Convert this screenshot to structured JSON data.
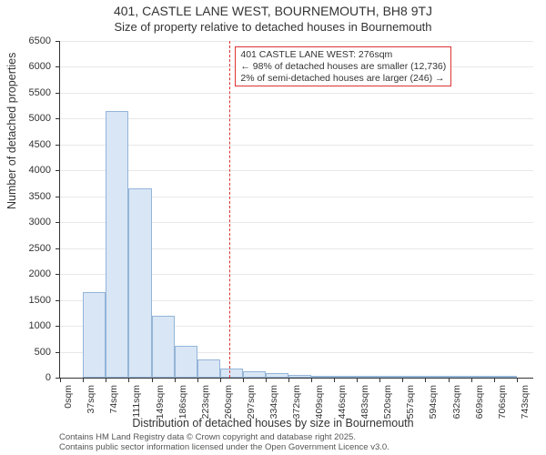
{
  "chart": {
    "type": "histogram",
    "title_main": "401, CASTLE LANE WEST, BOURNEMOUTH, BH8 9TJ",
    "title_sub": "Size of property relative to detached houses in Bournemouth",
    "y_label": "Number of detached properties",
    "x_label": "Distribution of detached houses by size in Bournemouth",
    "title_fontsize": 14,
    "subtitle_fontsize": 13,
    "axis_label_fontsize": 12.5,
    "tick_fontsize": 11,
    "background_color": "#ffffff",
    "bar_fill": "#d9e6f5",
    "bar_stroke": "#94b5d8",
    "grid_color": "#e8e8e8",
    "ref_line_color": "#dd3333",
    "bar_stroke_width": 1,
    "y_ticks": [
      0,
      500,
      1000,
      1500,
      2000,
      2500,
      3000,
      3500,
      4000,
      4500,
      5000,
      5500,
      6000,
      6500
    ],
    "y_min": 0,
    "y_max": 6500,
    "x_ticks": [
      "0sqm",
      "37sqm",
      "74sqm",
      "111sqm",
      "149sqm",
      "186sqm",
      "223sqm",
      "260sqm",
      "297sqm",
      "334sqm",
      "372sqm",
      "409sqm",
      "446sqm",
      "483sqm",
      "520sqm",
      "557sqm",
      "594sqm",
      "632sqm",
      "669sqm",
      "706sqm",
      "743sqm"
    ],
    "x_min": 0,
    "x_max": 770,
    "bins": [
      {
        "start": 37,
        "end": 74,
        "count": 1650
      },
      {
        "start": 74,
        "end": 111,
        "count": 5150
      },
      {
        "start": 111,
        "end": 149,
        "count": 3650
      },
      {
        "start": 149,
        "end": 186,
        "count": 1200
      },
      {
        "start": 186,
        "end": 223,
        "count": 620
      },
      {
        "start": 223,
        "end": 260,
        "count": 350
      },
      {
        "start": 260,
        "end": 297,
        "count": 180
      },
      {
        "start": 297,
        "end": 334,
        "count": 120
      },
      {
        "start": 334,
        "end": 372,
        "count": 80
      },
      {
        "start": 372,
        "end": 409,
        "count": 50
      },
      {
        "start": 409,
        "end": 446,
        "count": 35
      },
      {
        "start": 446,
        "end": 483,
        "count": 20
      },
      {
        "start": 483,
        "end": 520,
        "count": 12
      },
      {
        "start": 520,
        "end": 557,
        "count": 8
      },
      {
        "start": 557,
        "end": 594,
        "count": 6
      },
      {
        "start": 594,
        "end": 632,
        "count": 5
      },
      {
        "start": 632,
        "end": 669,
        "count": 4
      },
      {
        "start": 669,
        "end": 706,
        "count": 3
      },
      {
        "start": 706,
        "end": 743,
        "count": 2
      }
    ],
    "reference_x": 276,
    "annotation": {
      "line1": "401 CASTLE LANE WEST: 276sqm",
      "line2": "← 98% of detached houses are smaller (12,736)",
      "line3": "2% of semi-detached houses are larger (246) →",
      "border_color": "#dd3333",
      "fontsize": 10.5
    }
  },
  "credits": {
    "line1": "Contains HM Land Registry data © Crown copyright and database right 2025.",
    "line2": "Contains public sector information licensed under the Open Government Licence v3.0."
  }
}
